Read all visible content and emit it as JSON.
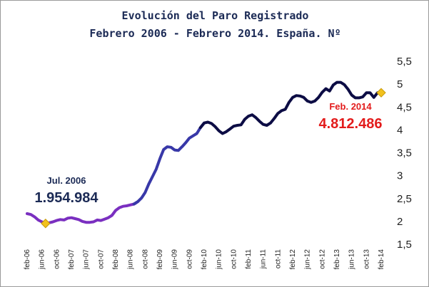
{
  "chart_data": {
    "type": "line",
    "title": "Evolución del Paro Registrado",
    "subtitle": "Febrero 2006 - Febrero 2014. España. Nº",
    "xlabel": "",
    "ylabel": "",
    "ylim": [
      1.5,
      5.5
    ],
    "y_ticks": [
      "5,5",
      "5",
      "4,5",
      "4",
      "3,5",
      "3",
      "2,5",
      "2",
      "1,5"
    ],
    "y_tick_values": [
      5.5,
      5,
      4.5,
      4,
      3.5,
      3,
      2.5,
      2,
      1.5
    ],
    "x_ticks": [
      "feb-06",
      "jun-06",
      "oct-06",
      "feb-07",
      "jun-07",
      "oct-07",
      "feb-08",
      "jun-08",
      "oct-08",
      "feb-09",
      "jun-09",
      "oct-09",
      "feb-10",
      "jun-10",
      "oct-10",
      "feb-11",
      "jun-11",
      "oct-11",
      "feb-12",
      "jun-12",
      "oct-12",
      "feb-13",
      "jun-13",
      "oct-13",
      "feb-14"
    ],
    "x": [
      "feb-06",
      "mar-06",
      "apr-06",
      "may-06",
      "jun-06",
      "jul-06",
      "aug-06",
      "sep-06",
      "oct-06",
      "nov-06",
      "dec-06",
      "jan-07",
      "feb-07",
      "mar-07",
      "apr-07",
      "may-07",
      "jun-07",
      "jul-07",
      "aug-07",
      "sep-07",
      "oct-07",
      "nov-07",
      "dec-07",
      "jan-08",
      "feb-08",
      "mar-08",
      "apr-08",
      "may-08",
      "jun-08",
      "jul-08",
      "aug-08",
      "sep-08",
      "oct-08",
      "nov-08",
      "dec-08",
      "jan-09",
      "feb-09",
      "mar-09",
      "apr-09",
      "may-09",
      "jun-09",
      "jul-09",
      "aug-09",
      "sep-09",
      "oct-09",
      "nov-09",
      "dec-09",
      "jan-10",
      "feb-10",
      "mar-10",
      "apr-10",
      "may-10",
      "jun-10",
      "jul-10",
      "aug-10",
      "sep-10",
      "oct-10",
      "nov-10",
      "dec-10",
      "jan-11",
      "feb-11",
      "mar-11",
      "apr-11",
      "may-11",
      "jun-11",
      "jul-11",
      "aug-11",
      "sep-11",
      "oct-11",
      "nov-11",
      "dec-11",
      "jan-12",
      "feb-12",
      "mar-12",
      "apr-12",
      "may-12",
      "jun-12",
      "jul-12",
      "aug-12",
      "sep-12",
      "oct-12",
      "nov-12",
      "dec-12",
      "jan-13",
      "feb-13",
      "mar-13",
      "apr-13",
      "may-13",
      "jun-13",
      "jul-13",
      "aug-13",
      "sep-13",
      "oct-13",
      "nov-13",
      "dec-13",
      "jan-14",
      "feb-14"
    ],
    "series": [
      {
        "values": [
          2.17,
          2.15,
          2.1,
          2.03,
          1.99,
          1.955,
          1.97,
          1.99,
          2.02,
          2.04,
          2.03,
          2.07,
          2.08,
          2.06,
          2.04,
          2.0,
          1.98,
          1.98,
          1.99,
          2.03,
          2.02,
          2.05,
          2.08,
          2.13,
          2.24,
          2.3,
          2.33,
          2.34,
          2.36,
          2.38,
          2.43,
          2.51,
          2.63,
          2.82,
          2.98,
          3.14,
          3.37,
          3.57,
          3.63,
          3.62,
          3.56,
          3.55,
          3.63,
          3.72,
          3.82,
          3.87,
          3.92,
          4.05,
          4.15,
          4.17,
          4.14,
          4.07,
          3.98,
          3.92,
          3.96,
          4.02,
          4.08,
          4.1,
          4.11,
          4.23,
          4.3,
          4.33,
          4.27,
          4.19,
          4.12,
          4.1,
          4.15,
          4.25,
          4.36,
          4.42,
          4.45,
          4.6,
          4.71,
          4.75,
          4.74,
          4.71,
          4.63,
          4.6,
          4.63,
          4.71,
          4.82,
          4.9,
          4.85,
          4.98,
          5.04,
          5.04,
          4.99,
          4.89,
          4.76,
          4.7,
          4.7,
          4.72,
          4.81,
          4.81,
          4.71,
          4.81,
          4.812486
        ]
      }
    ],
    "colors": {
      "early": "#7a2fc0",
      "middle": "#3838a8",
      "late": "#0c0c44",
      "marker": "#f2c11d",
      "highlight_label": "#e31b1b",
      "start_label": "#1b2a55"
    },
    "annotations": [
      {
        "label": "Jul. 2006",
        "value": "1.954.984",
        "x": "jul-06",
        "y": 1.955
      },
      {
        "label": "Feb. 2014",
        "value": "4.812.486",
        "x": "feb-14",
        "y": 4.812486
      }
    ]
  }
}
